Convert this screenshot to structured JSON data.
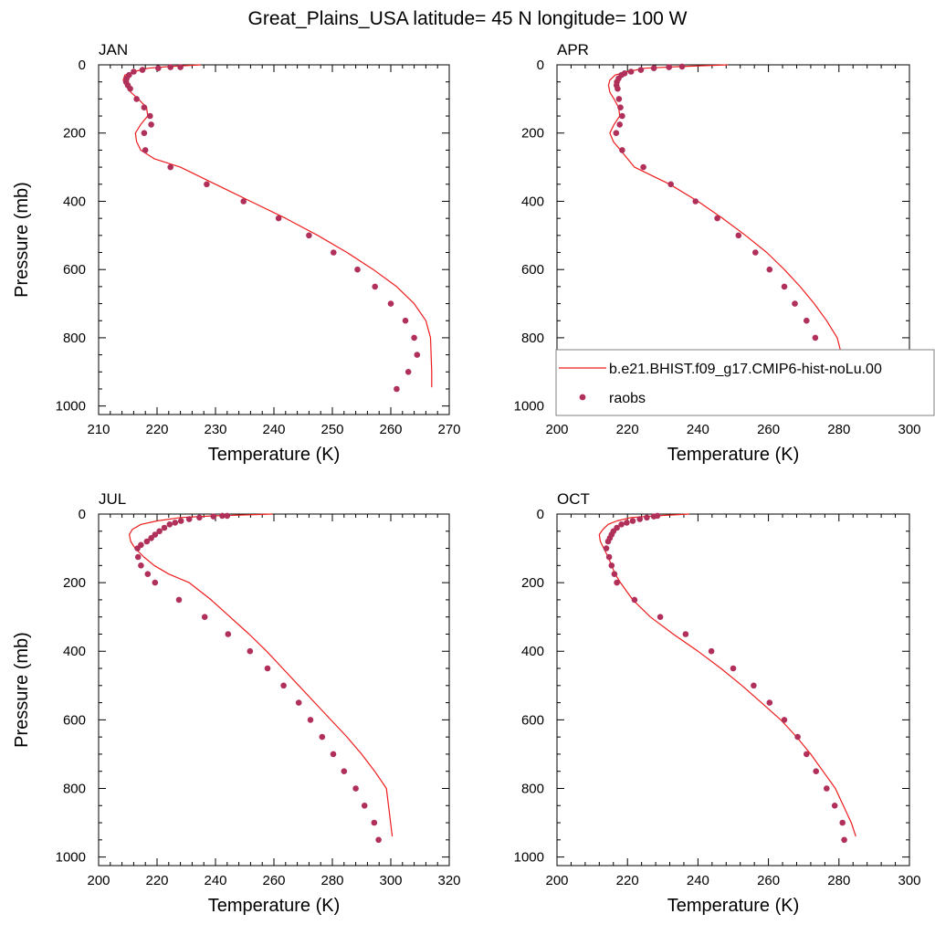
{
  "page": {
    "title": "Great_Plains_USA  latitude= 45 N longitude= 100 W"
  },
  "colors": {
    "model_line": "#ee1c1c",
    "obs_marker": "#b0305a",
    "axis": "#000000",
    "legend_border": "#808080"
  },
  "legend": {
    "model_label": "b.e21.BHIST.f09_g17.CMIP6-hist-noLu.00",
    "obs_label": "raobs"
  },
  "chart_data": [
    {
      "type": "line",
      "panel": "JAN",
      "title": "JAN",
      "xlabel": "Temperature (K)",
      "ylabel": "Pressure (mb)",
      "xlim": [
        210,
        270
      ],
      "ylim": [
        1025,
        0
      ],
      "xticks": [
        210,
        220,
        230,
        240,
        250,
        260,
        270
      ],
      "yticks": [
        0,
        200,
        400,
        600,
        800,
        1000
      ],
      "series": [
        {
          "kind": "line",
          "x": [
            227.5,
            222,
            218.5,
            216,
            214.5,
            214.2,
            214.6,
            215.5,
            216.8,
            218.2,
            218.4,
            217.2,
            216.3,
            216.5,
            217.2,
            219.5,
            224,
            230,
            236,
            242,
            247.5,
            252.5,
            257,
            261,
            264,
            266,
            266.8,
            267,
            267
          ],
          "y": [
            0,
            5,
            10,
            20,
            30,
            45,
            60,
            80,
            100,
            125,
            150,
            175,
            200,
            225,
            250,
            275,
            300,
            350,
            400,
            450,
            500,
            550,
            600,
            650,
            700,
            750,
            800,
            900,
            945
          ]
        },
        {
          "kind": "scatter",
          "x": [
            224,
            222.3,
            220.2,
            217.5,
            216,
            215.2,
            214.8,
            214.7,
            215,
            215.4,
            216.5,
            217.8,
            218.8,
            219,
            217.8,
            218,
            222.3,
            228.5,
            234.8,
            240.8,
            246,
            250.2,
            254.3,
            257.3,
            260,
            262.5,
            264,
            264.5,
            263,
            261
          ],
          "y": [
            7,
            7,
            10,
            15,
            20,
            30,
            40,
            50,
            60,
            70,
            100,
            125,
            150,
            175,
            200,
            250,
            300,
            350,
            400,
            450,
            500,
            550,
            600,
            650,
            700,
            750,
            800,
            850,
            900,
            950
          ]
        }
      ]
    },
    {
      "type": "line",
      "panel": "APR",
      "title": "APR",
      "xlabel": "Temperature (K)",
      "ylabel": "",
      "xlim": [
        200,
        300
      ],
      "ylim": [
        1025,
        0
      ],
      "xticks": [
        200,
        220,
        240,
        260,
        280,
        300
      ],
      "yticks": [
        0,
        200,
        400,
        600,
        800,
        1000
      ],
      "series": [
        {
          "kind": "line",
          "x": [
            248.5,
            235,
            225,
            220,
            216.5,
            215,
            214.6,
            215,
            216.2,
            217.5,
            217.8,
            216.2,
            215,
            216,
            218,
            222,
            232,
            240,
            247,
            253.5,
            259.5,
            264.5,
            269,
            273,
            276.5,
            279.5,
            282,
            283
          ],
          "y": [
            0,
            5,
            10,
            20,
            30,
            45,
            60,
            80,
            100,
            125,
            150,
            175,
            200,
            225,
            250,
            300,
            350,
            400,
            450,
            500,
            550,
            600,
            650,
            700,
            750,
            800,
            900,
            945
          ]
        },
        {
          "kind": "scatter",
          "x": [
            235.5,
            231.8,
            227.5,
            223.8,
            221,
            219.2,
            218.3,
            217.5,
            217,
            216.9,
            217.2,
            217.6,
            218,
            218.5,
            217.8,
            216.8,
            218.5,
            224.5,
            232.3,
            239.3,
            245.5,
            251.5,
            256.3,
            260.3,
            264.5,
            267.5,
            270.8,
            273.3,
            275.5,
            278.3,
            279.3
          ],
          "y": [
            5,
            7,
            10,
            15,
            20,
            25,
            30,
            40,
            50,
            60,
            70,
            100,
            125,
            150,
            175,
            200,
            250,
            300,
            350,
            400,
            450,
            500,
            550,
            600,
            650,
            700,
            750,
            800,
            850,
            900,
            950
          ]
        }
      ]
    },
    {
      "type": "line",
      "panel": "JUL",
      "title": "JUL",
      "xlabel": "Temperature (K)",
      "ylabel": "Pressure (mb)",
      "xlim": [
        200,
        320
      ],
      "ylim": [
        1025,
        0
      ],
      "xticks": [
        200,
        220,
        240,
        260,
        280,
        300,
        320
      ],
      "yticks": [
        0,
        200,
        400,
        600,
        800,
        1000
      ],
      "series": [
        {
          "kind": "line",
          "x": [
            259.5,
            240,
            228,
            220,
            214.5,
            211.5,
            210.5,
            211,
            212.5,
            215.5,
            219,
            224,
            231,
            238.5,
            245,
            251.5,
            257.5,
            263,
            268.5,
            274,
            279.5,
            285,
            290,
            294.5,
            298.5,
            300.5
          ],
          "y": [
            0,
            5,
            10,
            20,
            30,
            45,
            60,
            80,
            100,
            125,
            150,
            175,
            200,
            250,
            300,
            350,
            400,
            450,
            500,
            550,
            600,
            650,
            700,
            750,
            800,
            940
          ]
        },
        {
          "kind": "scatter",
          "x": [
            244,
            242.3,
            239.3,
            234.5,
            231,
            228.2,
            226.2,
            224.3,
            222.5,
            220.8,
            219.3,
            218,
            216.5,
            214.5,
            213.3,
            213.5,
            214.5,
            216.8,
            219.3,
            227.5,
            236.3,
            244.3,
            251.8,
            257.8,
            263.3,
            268.5,
            272.5,
            276.5,
            280.3,
            284,
            288,
            291,
            294.3,
            295.8
          ],
          "y": [
            5,
            5,
            7,
            10,
            15,
            20,
            25,
            30,
            40,
            50,
            60,
            70,
            80,
            90,
            100,
            125,
            150,
            175,
            200,
            250,
            300,
            350,
            400,
            450,
            500,
            550,
            600,
            650,
            700,
            750,
            800,
            850,
            900,
            950
          ]
        }
      ]
    },
    {
      "type": "line",
      "panel": "OCT",
      "title": "OCT",
      "xlabel": "Temperature (K)",
      "ylabel": "",
      "xlim": [
        200,
        300
      ],
      "ylim": [
        1025,
        0
      ],
      "xticks": [
        200,
        220,
        240,
        260,
        280,
        300
      ],
      "yticks": [
        0,
        200,
        400,
        600,
        800,
        1000
      ],
      "series": [
        {
          "kind": "line",
          "x": [
            237.5,
            228,
            221,
            217,
            214.5,
            213,
            212,
            212.3,
            213.3,
            214.5,
            215.5,
            216.5,
            218,
            221.5,
            226.5,
            233,
            240,
            246.5,
            252.5,
            258,
            263.5,
            268,
            272,
            275.5,
            279,
            283.5,
            284.8
          ],
          "y": [
            0,
            5,
            10,
            20,
            30,
            45,
            60,
            80,
            100,
            125,
            150,
            175,
            200,
            250,
            300,
            350,
            400,
            450,
            500,
            550,
            600,
            650,
            700,
            750,
            800,
            900,
            940
          ]
        },
        {
          "kind": "scatter",
          "x": [
            228.5,
            227.5,
            225.5,
            223.5,
            221.5,
            219.8,
            218.3,
            217,
            216,
            215.5,
            215,
            214.5,
            214,
            214.8,
            215.5,
            216.3,
            217,
            222,
            229.3,
            236.5,
            243.8,
            250,
            255.8,
            260.3,
            264.5,
            268.3,
            270.8,
            273.5,
            276.5,
            278.8,
            281,
            281.5
          ],
          "y": [
            5,
            7,
            10,
            15,
            20,
            25,
            30,
            40,
            50,
            60,
            70,
            80,
            100,
            125,
            150,
            175,
            200,
            250,
            300,
            350,
            400,
            450,
            500,
            550,
            600,
            650,
            700,
            750,
            800,
            850,
            900,
            950
          ]
        }
      ]
    }
  ]
}
